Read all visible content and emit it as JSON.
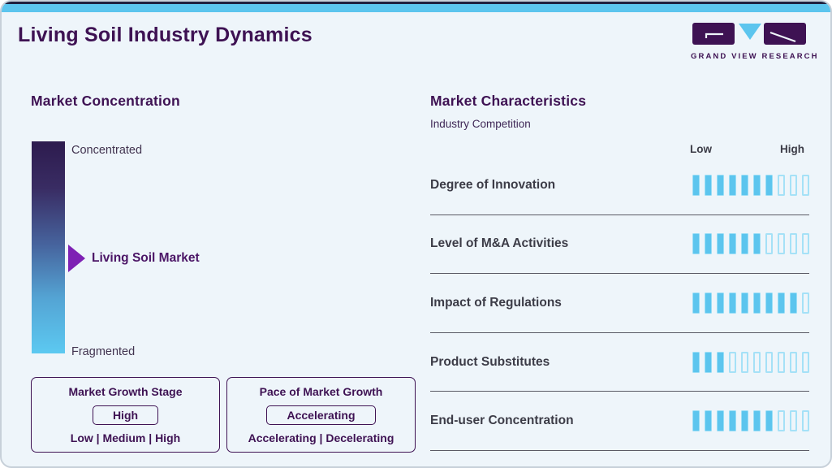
{
  "header": {
    "title": "Living Soil Industry Dynamics",
    "logo_text": "GRAND VIEW RESEARCH"
  },
  "market_concentration": {
    "title": "Market Concentration",
    "top_label": "Concentrated",
    "bottom_label": "Fragmented",
    "marker_label": "Living Soil Market",
    "marker_position_from_top": 0.55
  },
  "growth_stage_box": {
    "title": "Market Growth Stage",
    "value": "High",
    "options": "Low | Medium | High"
  },
  "pace_box": {
    "title": "Pace of Market Growth",
    "value": "Accelerating",
    "options": "Accelerating | Decelerating"
  },
  "market_characteristics": {
    "title": "Market Characteristics",
    "subtitle": "Industry Competition",
    "scale_low": "Low",
    "scale_high": "High",
    "rows": [
      {
        "label": "Degree of Innovation",
        "filled": 7,
        "total": 10
      },
      {
        "label": "Level of M&A Activities",
        "filled": 6,
        "total": 10
      },
      {
        "label": "Impact of Regulations",
        "filled": 9,
        "total": 10
      },
      {
        "label": "Product Substitutes",
        "filled": 3,
        "total": 10
      },
      {
        "label": "End-user Concentration",
        "filled": 7,
        "total": 10
      }
    ]
  },
  "chart_data": [
    {
      "type": "bar",
      "title": "Market Characteristics",
      "subtitle": "Industry Competition",
      "categories": [
        "Degree of Innovation",
        "Level of M&A Activities",
        "Impact of Regulations",
        "Product Substitutes",
        "End-user Concentration"
      ],
      "values": [
        7,
        6,
        9,
        3,
        7
      ],
      "value_max": 10,
      "scale_labels": [
        "Low",
        "High"
      ],
      "legend_position": "none",
      "grid": false
    },
    {
      "type": "other",
      "title": "Market Concentration",
      "scale_top": "Concentrated",
      "scale_bottom": "Fragmented",
      "marker": "Living Soil Market",
      "marker_position_from_top": 0.55
    },
    {
      "type": "table",
      "rows": [
        [
          "Market Growth Stage",
          "High"
        ],
        [
          "Pace of Market Growth",
          "Accelerating"
        ]
      ]
    }
  ],
  "colors": {
    "background": "#eef5fa",
    "accent_cyan": "#5cc5ee",
    "brand_purple": "#3e1253",
    "arrow_purple": "#7e21b4",
    "text_dark": "#3c3c47",
    "tick_outline": "#a5e1f7",
    "divider": "#5a5a64",
    "gradient_top": "#2d1b4e",
    "gradient_bottom": "#5cc9f1"
  }
}
